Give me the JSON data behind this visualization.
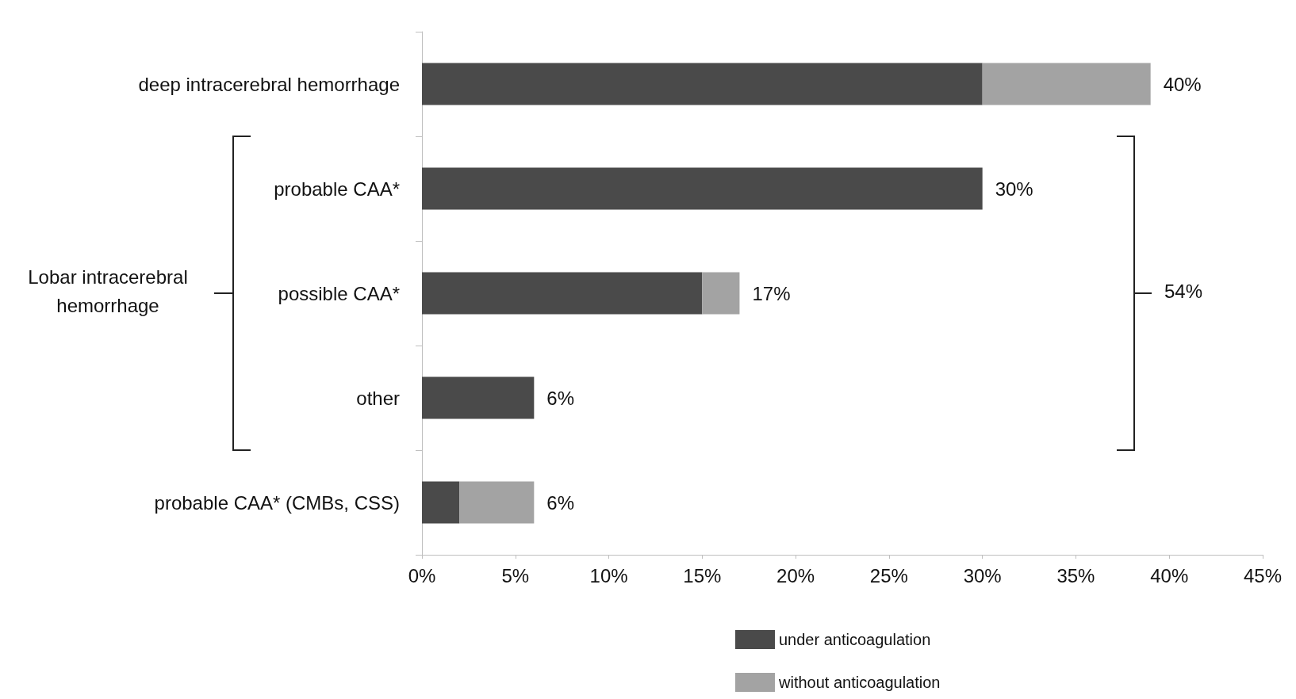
{
  "chart_data": {
    "type": "bar",
    "orientation": "horizontal",
    "stacked": true,
    "categories": [
      "deep intracerebral hemorrhage",
      "probable CAA*",
      "possible CAA*",
      "other",
      "probable CAA* (CMBs, CSS)"
    ],
    "series": [
      {
        "name": "under anticoagulation",
        "color": "#4a4a4a",
        "values": [
          30,
          30,
          15,
          6,
          2
        ]
      },
      {
        "name": "without anticoagulation",
        "color": "#a3a3a3",
        "values": [
          9,
          0,
          2,
          0,
          4
        ]
      }
    ],
    "totals": [
      "40%",
      "30%",
      "17%",
      "6%",
      "6%"
    ],
    "xlim": [
      0,
      45
    ],
    "xticks": [
      {
        "value": 0,
        "label": "0%"
      },
      {
        "value": 5,
        "label": "5%"
      },
      {
        "value": 10,
        "label": "10%"
      },
      {
        "value": 15,
        "label": "15%"
      },
      {
        "value": 20,
        "label": "20%"
      },
      {
        "value": 25,
        "label": "25%"
      },
      {
        "value": 30,
        "label": "30%"
      },
      {
        "value": 35,
        "label": "35%"
      },
      {
        "value": 40,
        "label": "40%"
      },
      {
        "value": 45,
        "label": "45%"
      }
    ],
    "grid": false,
    "legend": "bottom",
    "annotations": [
      "Lobar intracerebral hemorrhage",
      "54%"
    ]
  }
}
